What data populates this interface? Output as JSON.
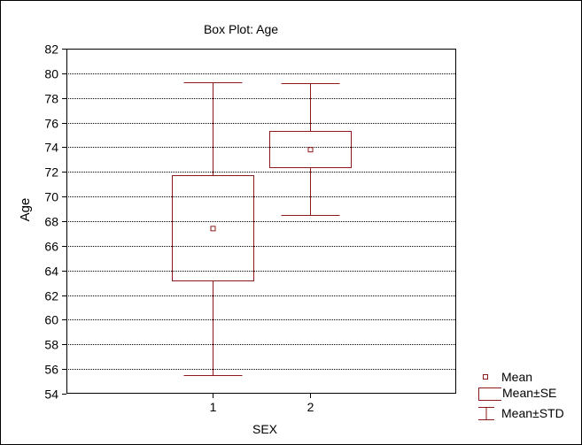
{
  "chart_data": {
    "type": "box",
    "title": "Box Plot: Age",
    "xlabel": "SEX",
    "ylabel": "Age",
    "categories": [
      "1",
      "2"
    ],
    "ylim": [
      54,
      82
    ],
    "yticks": [
      54,
      56,
      58,
      60,
      62,
      64,
      66,
      68,
      70,
      72,
      74,
      76,
      78,
      80,
      82
    ],
    "grid": true,
    "legend_position": "bottom-right",
    "legend": [
      "Mean",
      "Mean±SE",
      "Mean±STD"
    ],
    "series": [
      {
        "category": "1",
        "mean": 67.4,
        "se_low": 63.2,
        "se_high": 71.7,
        "std_low": 55.5,
        "std_high": 79.3
      },
      {
        "category": "2",
        "mean": 73.8,
        "se_low": 72.4,
        "se_high": 75.3,
        "std_low": 68.5,
        "std_high": 79.2
      }
    ],
    "colors": {
      "series": "#8b1a1a",
      "grid": "#000000",
      "frame": "#000000"
    }
  }
}
